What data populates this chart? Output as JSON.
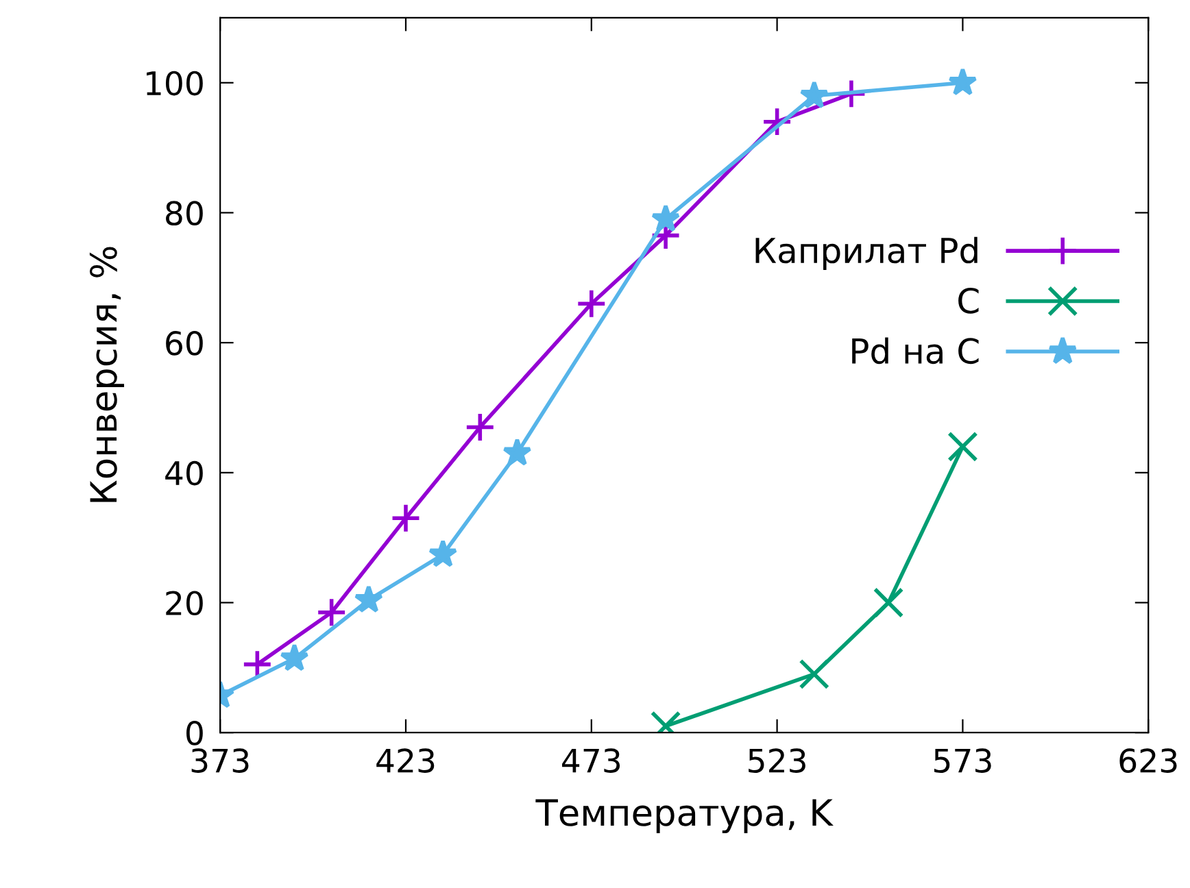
{
  "chart_data": {
    "type": "line",
    "xlabel": "Температура, K",
    "ylabel": "Конверсия, %",
    "xlim": [
      373,
      623
    ],
    "xticks": [
      373,
      423,
      473,
      523,
      573,
      623
    ],
    "ylim": [
      0,
      110
    ],
    "yticks": [
      0,
      20,
      40,
      60,
      80,
      100
    ],
    "grid": false,
    "legend": "right",
    "line_style": "solid",
    "series": [
      {
        "name": "Каприлат Pd",
        "color": "#9400d3",
        "marker": "plus",
        "x": [
          383,
          403,
          423,
          443,
          473,
          493,
          523,
          543
        ],
        "values": [
          10.5,
          18.5,
          33,
          47,
          66,
          76.5,
          94,
          98.3
        ]
      },
      {
        "name": "C",
        "color": "#009e73",
        "marker": "cross",
        "x": [
          493,
          533,
          553,
          573
        ],
        "values": [
          1,
          9,
          20,
          44
        ]
      },
      {
        "name": "Pd на C",
        "color": "#56b4e9",
        "marker": "star",
        "x": [
          373,
          393,
          413,
          433,
          453,
          493,
          533,
          573
        ],
        "values": [
          5.7,
          11.4,
          20.4,
          27.4,
          43,
          79,
          98,
          100
        ]
      }
    ]
  }
}
